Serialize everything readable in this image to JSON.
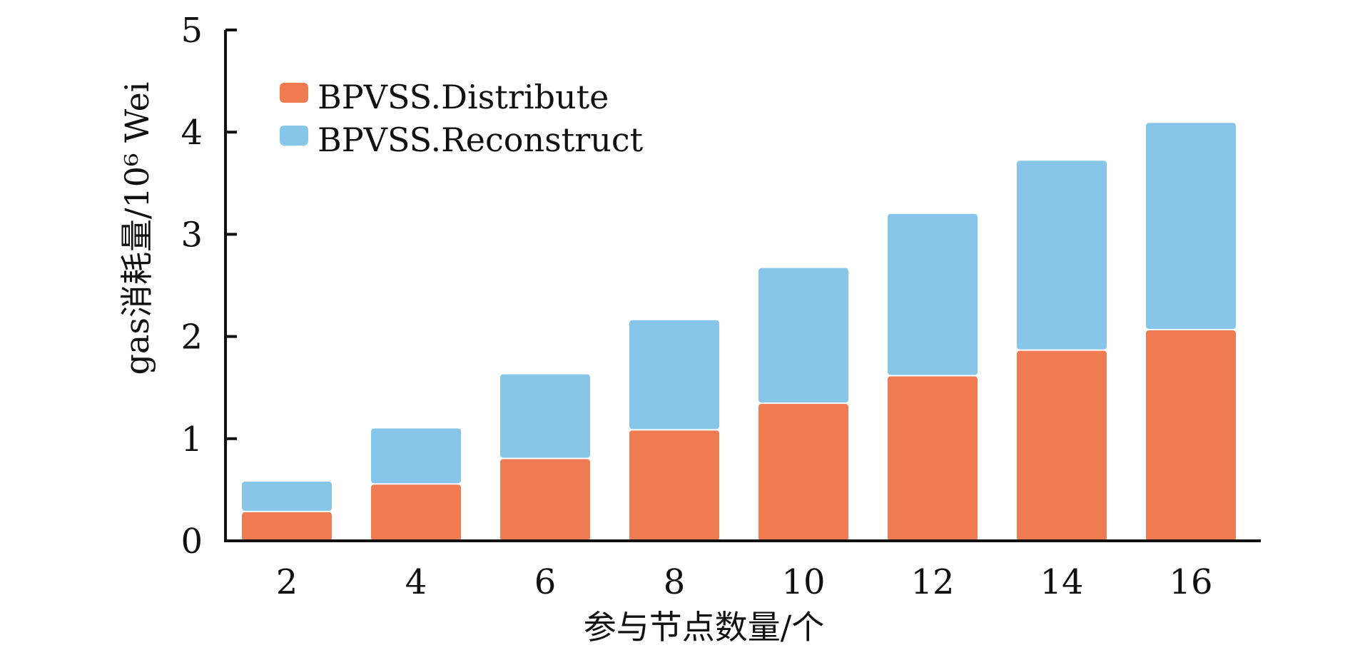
{
  "chart_data": {
    "type": "bar",
    "stacked": true,
    "categories": [
      "2",
      "4",
      "6",
      "8",
      "10",
      "12",
      "14",
      "16"
    ],
    "series": [
      {
        "name": "BPVSS.Distribute",
        "color": "#EE7B52",
        "values": [
          0.28,
          0.55,
          0.8,
          1.08,
          1.34,
          1.61,
          1.86,
          2.06
        ]
      },
      {
        "name": "BPVSS.Reconstruct",
        "color": "#87C5E9",
        "values": [
          0.3,
          0.55,
          0.83,
          1.08,
          1.33,
          1.59,
          1.86,
          2.03
        ]
      }
    ],
    "title": "",
    "xlabel": "参与节点数量/个",
    "ylabel": "gas消耗量/10⁶ Wei",
    "ylim": [
      0,
      5
    ],
    "yticks": [
      "0",
      "1",
      "2",
      "3",
      "4",
      "5"
    ],
    "grid": false,
    "legend_position": "top-left"
  }
}
